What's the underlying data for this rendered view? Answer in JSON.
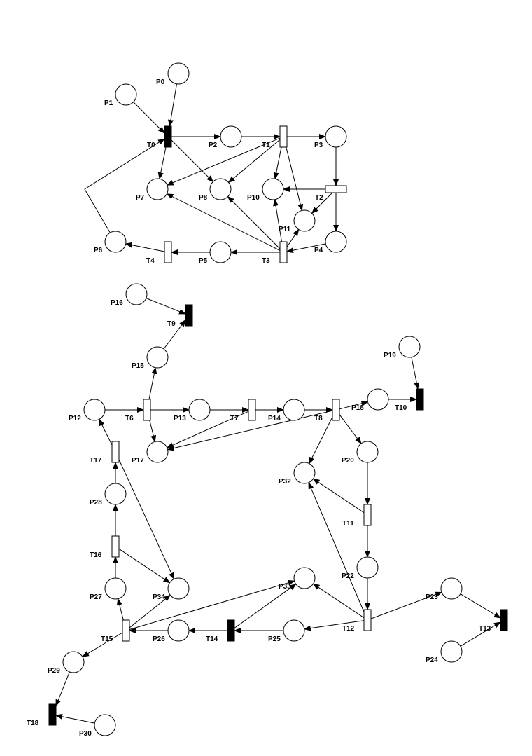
{
  "places": [
    "P0",
    "P1",
    "P2",
    "P3",
    "P4",
    "P5",
    "P6",
    "P7",
    "P8",
    "P10",
    "P11",
    "P12",
    "P13",
    "P14",
    "P15",
    "P16",
    "P17",
    "P18",
    "P19",
    "P20",
    "P22",
    "P23",
    "P24",
    "P25",
    "P26",
    "P27",
    "P28",
    "P29",
    "P30",
    "P32",
    "P33",
    "P34"
  ],
  "transitions": [
    {
      "label": "T0",
      "style": "solid"
    },
    {
      "label": "T1",
      "style": "hollow"
    },
    {
      "label": "T2",
      "style": "hollow"
    },
    {
      "label": "T3",
      "style": "hollow"
    },
    {
      "label": "T4",
      "style": "hollow"
    },
    {
      "label": "T6",
      "style": "hollow"
    },
    {
      "label": "T7",
      "style": "hollow"
    },
    {
      "label": "T8",
      "style": "hollow"
    },
    {
      "label": "T9",
      "style": "solid"
    },
    {
      "label": "T10",
      "style": "solid"
    },
    {
      "label": "T11",
      "style": "hollow"
    },
    {
      "label": "T12",
      "style": "hollow"
    },
    {
      "label": "T13",
      "style": "solid"
    },
    {
      "label": "T14",
      "style": "solid"
    },
    {
      "label": "T15",
      "style": "hollow"
    },
    {
      "label": "T16",
      "style": "hollow"
    },
    {
      "label": "T17",
      "style": "hollow"
    },
    {
      "label": "T18",
      "style": "solid"
    }
  ],
  "arcs": [
    [
      "P0",
      "T0"
    ],
    [
      "P1",
      "T0"
    ],
    [
      "P6",
      "T0"
    ],
    [
      "T0",
      "P2"
    ],
    [
      "T0",
      "P7"
    ],
    [
      "T0",
      "P8"
    ],
    [
      "P2",
      "T1"
    ],
    [
      "T1",
      "P3"
    ],
    [
      "T1",
      "P7"
    ],
    [
      "T1",
      "P8"
    ],
    [
      "T1",
      "P10"
    ],
    [
      "T1",
      "P11"
    ],
    [
      "P3",
      "T2"
    ],
    [
      "T2",
      "P10"
    ],
    [
      "T2",
      "P11"
    ],
    [
      "T2",
      "P4"
    ],
    [
      "P4",
      "T3"
    ],
    [
      "T3",
      "P5"
    ],
    [
      "T3",
      "P7"
    ],
    [
      "T3",
      "P8"
    ],
    [
      "T3",
      "P10"
    ],
    [
      "T3",
      "P11"
    ],
    [
      "P5",
      "T4"
    ],
    [
      "T4",
      "P6"
    ],
    [
      "P16",
      "T9"
    ],
    [
      "P15",
      "T9"
    ],
    [
      "P12",
      "T6"
    ],
    [
      "T6",
      "P13"
    ],
    [
      "T6",
      "P15"
    ],
    [
      "T6",
      "P17"
    ],
    [
      "P13",
      "T7"
    ],
    [
      "T7",
      "P14"
    ],
    [
      "T7",
      "P17"
    ],
    [
      "P14",
      "T8"
    ],
    [
      "T8",
      "P18"
    ],
    [
      "T8",
      "P17"
    ],
    [
      "T8",
      "P32"
    ],
    [
      "T8",
      "P20"
    ],
    [
      "P18",
      "T10"
    ],
    [
      "P19",
      "T10"
    ],
    [
      "P20",
      "T11"
    ],
    [
      "T11",
      "P32"
    ],
    [
      "T11",
      "P22"
    ],
    [
      "P22",
      "T12"
    ],
    [
      "T12",
      "P32"
    ],
    [
      "T12",
      "P33"
    ],
    [
      "T12",
      "P25"
    ],
    [
      "T12",
      "P23"
    ],
    [
      "P23",
      "T13"
    ],
    [
      "P24",
      "T13"
    ],
    [
      "P25",
      "T14"
    ],
    [
      "T14",
      "P26"
    ],
    [
      "T14",
      "P33"
    ],
    [
      "P26",
      "T15"
    ],
    [
      "T15",
      "P27"
    ],
    [
      "T15",
      "P33"
    ],
    [
      "T15",
      "P34"
    ],
    [
      "T15",
      "P29"
    ],
    [
      "P27",
      "T16"
    ],
    [
      "T16",
      "P28"
    ],
    [
      "T16",
      "P34"
    ],
    [
      "P28",
      "T17"
    ],
    [
      "T17",
      "P12"
    ],
    [
      "T17",
      "P34"
    ],
    [
      "P29",
      "T18"
    ],
    [
      "P30",
      "T18"
    ]
  ]
}
